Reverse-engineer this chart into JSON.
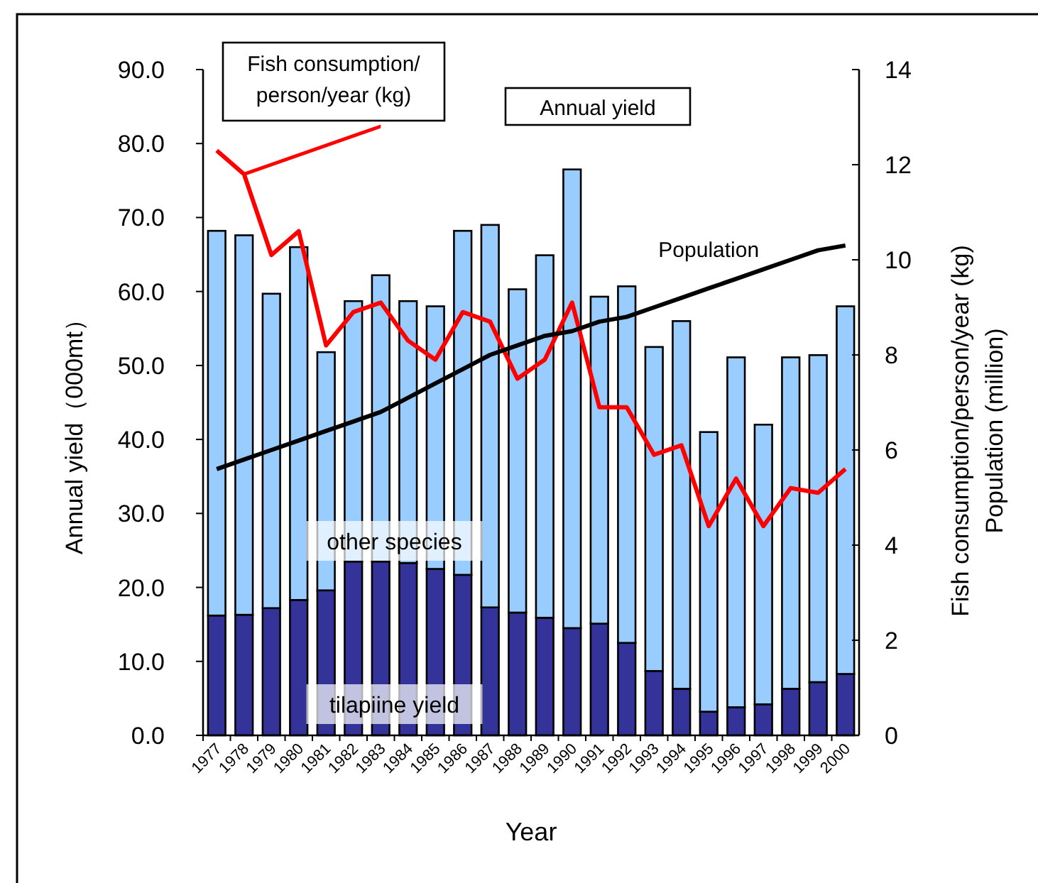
{
  "chart_data": {
    "type": "bar",
    "stacked": true,
    "xlabel": "Year",
    "ylabel": "Annual yield（000mt）",
    "y2label": "Fish consumption/person/year (kg)\nPopulation (million)",
    "categories": [
      "1977",
      "1978",
      "1979",
      "1980",
      "1981",
      "1982",
      "1983",
      "1984",
      "1985",
      "1986",
      "1987",
      "1988",
      "1989",
      "1990",
      "1991",
      "1992",
      "1993",
      "1994",
      "1995",
      "1996",
      "1997",
      "1998",
      "1999",
      "2000"
    ],
    "series": [
      {
        "name": "tilapiine yield",
        "color": "#333399",
        "values": [
          16.2,
          16.3,
          17.2,
          18.3,
          19.6,
          23.5,
          23.5,
          23.3,
          22.5,
          21.7,
          17.3,
          16.6,
          15.9,
          14.5,
          15.1,
          12.5,
          8.7,
          6.3,
          3.2,
          3.8,
          4.2,
          6.3,
          7.2,
          8.3
        ]
      },
      {
        "name": "other species",
        "color": "#99ccff",
        "values": [
          52.0,
          51.3,
          42.5,
          47.7,
          32.2,
          35.2,
          38.7,
          35.4,
          35.5,
          46.5,
          51.7,
          43.7,
          49.0,
          62.0,
          44.2,
          48.2,
          43.8,
          49.7,
          37.8,
          47.3,
          37.8,
          44.8,
          44.2,
          49.7
        ]
      },
      {
        "name": "Fish consumption/\nperson/year (kg)",
        "type": "line",
        "axis": "y2",
        "color": "#ff0000",
        "values": [
          12.3,
          11.8,
          10.1,
          10.6,
          8.2,
          8.9,
          9.1,
          8.3,
          7.9,
          8.9,
          8.7,
          7.5,
          7.9,
          9.1,
          6.9,
          6.9,
          5.9,
          6.1,
          4.4,
          5.4,
          4.4,
          5.2,
          5.1,
          5.6
        ]
      },
      {
        "name": "Population",
        "type": "line",
        "axis": "y2",
        "color": "#000000",
        "values": [
          5.6,
          5.8,
          6.0,
          6.2,
          6.4,
          6.6,
          6.8,
          7.1,
          7.4,
          7.7,
          8.0,
          8.2,
          8.4,
          8.5,
          8.7,
          8.8,
          9.0,
          9.2,
          9.4,
          9.6,
          9.8,
          10.0,
          10.2,
          10.3
        ]
      }
    ],
    "ylim": [
      0,
      90
    ],
    "yticks": [
      {
        "value": 0,
        "label": "0.0"
      },
      {
        "value": 10,
        "label": "10.0"
      },
      {
        "value": 20,
        "label": "20.0"
      },
      {
        "value": 30,
        "label": "30.0"
      },
      {
        "value": 40,
        "label": "40.0"
      },
      {
        "value": 50,
        "label": "50.0"
      },
      {
        "value": 60,
        "label": "60.0"
      },
      {
        "value": 70,
        "label": "70.0"
      },
      {
        "value": 80,
        "label": "80.0"
      },
      {
        "value": 90,
        "label": "90.0"
      }
    ],
    "y2lim": [
      0,
      14
    ],
    "y2ticks": [
      0,
      2,
      4,
      6,
      8,
      10,
      12,
      14
    ],
    "annotations": [
      "Annual yield"
    ],
    "legend": false,
    "grid": false,
    "marker": "none",
    "line_style": "solid"
  }
}
